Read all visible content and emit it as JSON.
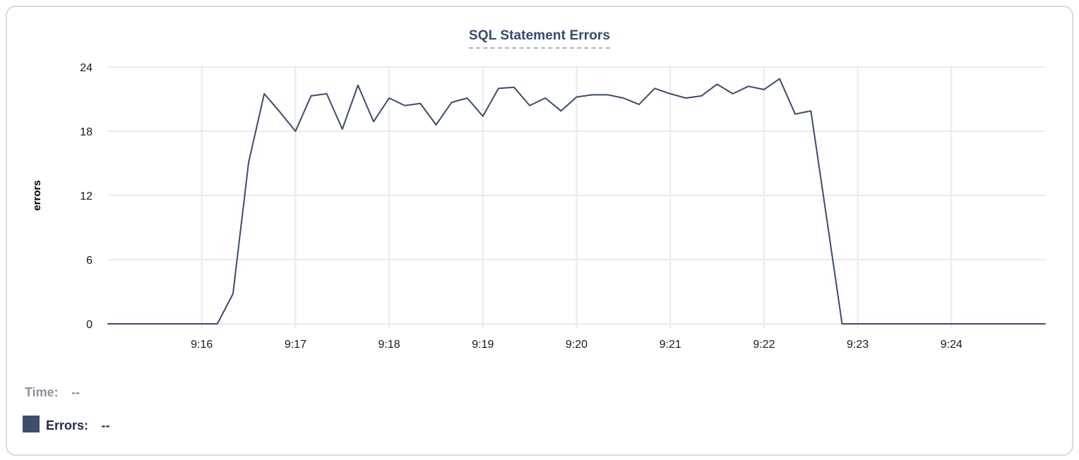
{
  "chart": {
    "title": "SQL Statement Errors"
  },
  "legend": {
    "time_label": "Time:",
    "time_value": "--",
    "errors_label": "Errors:",
    "errors_value": "--"
  },
  "colors": {
    "line": "#3d4c6c",
    "title": "#36496f",
    "title_underline": "#a9b4cd",
    "grid": "#eaeaea",
    "axis_text": "#1a1a1a",
    "axis_title": "#000000",
    "time_legend": "#8c929c",
    "errors_legend": "#1d2b52",
    "swatch": "#3f4e6e",
    "card_border": "#dadada",
    "background": "#ffffff"
  },
  "chart_data": {
    "type": "line",
    "title": "SQL Statement Errors",
    "xlabel": "",
    "ylabel": "errors",
    "ylim": [
      0,
      24
    ],
    "yticks": [
      0,
      6,
      12,
      18,
      24
    ],
    "xticks": [
      "9:16",
      "9:17",
      "9:18",
      "9:19",
      "9:20",
      "9:21",
      "9:22",
      "9:23",
      "9:24"
    ],
    "x_start": "9:15:00",
    "x_end": "9:25:00",
    "x_interval_seconds": 10,
    "grid": true,
    "legend_position": "bottom-left",
    "series": [
      {
        "name": "Errors",
        "color": "#3d4c6c",
        "values": [
          0,
          0,
          0,
          0,
          0,
          0,
          0,
          0,
          2.8,
          15.1,
          21.5,
          19.8,
          18,
          21.3,
          21.5,
          18.2,
          22.3,
          18.9,
          21.1,
          20.4,
          20.6,
          18.6,
          20.7,
          21.1,
          19.4,
          22,
          22.1,
          20.4,
          21.1,
          19.9,
          21.2,
          21.4,
          21.4,
          21.1,
          20.5,
          22,
          21.5,
          21.1,
          21.3,
          22.4,
          21.5,
          22.2,
          21.9,
          22.9,
          19.6,
          19.9,
          10,
          0,
          0,
          0,
          0,
          0,
          0,
          0,
          0,
          0,
          0,
          0,
          0,
          0,
          0
        ]
      }
    ]
  }
}
